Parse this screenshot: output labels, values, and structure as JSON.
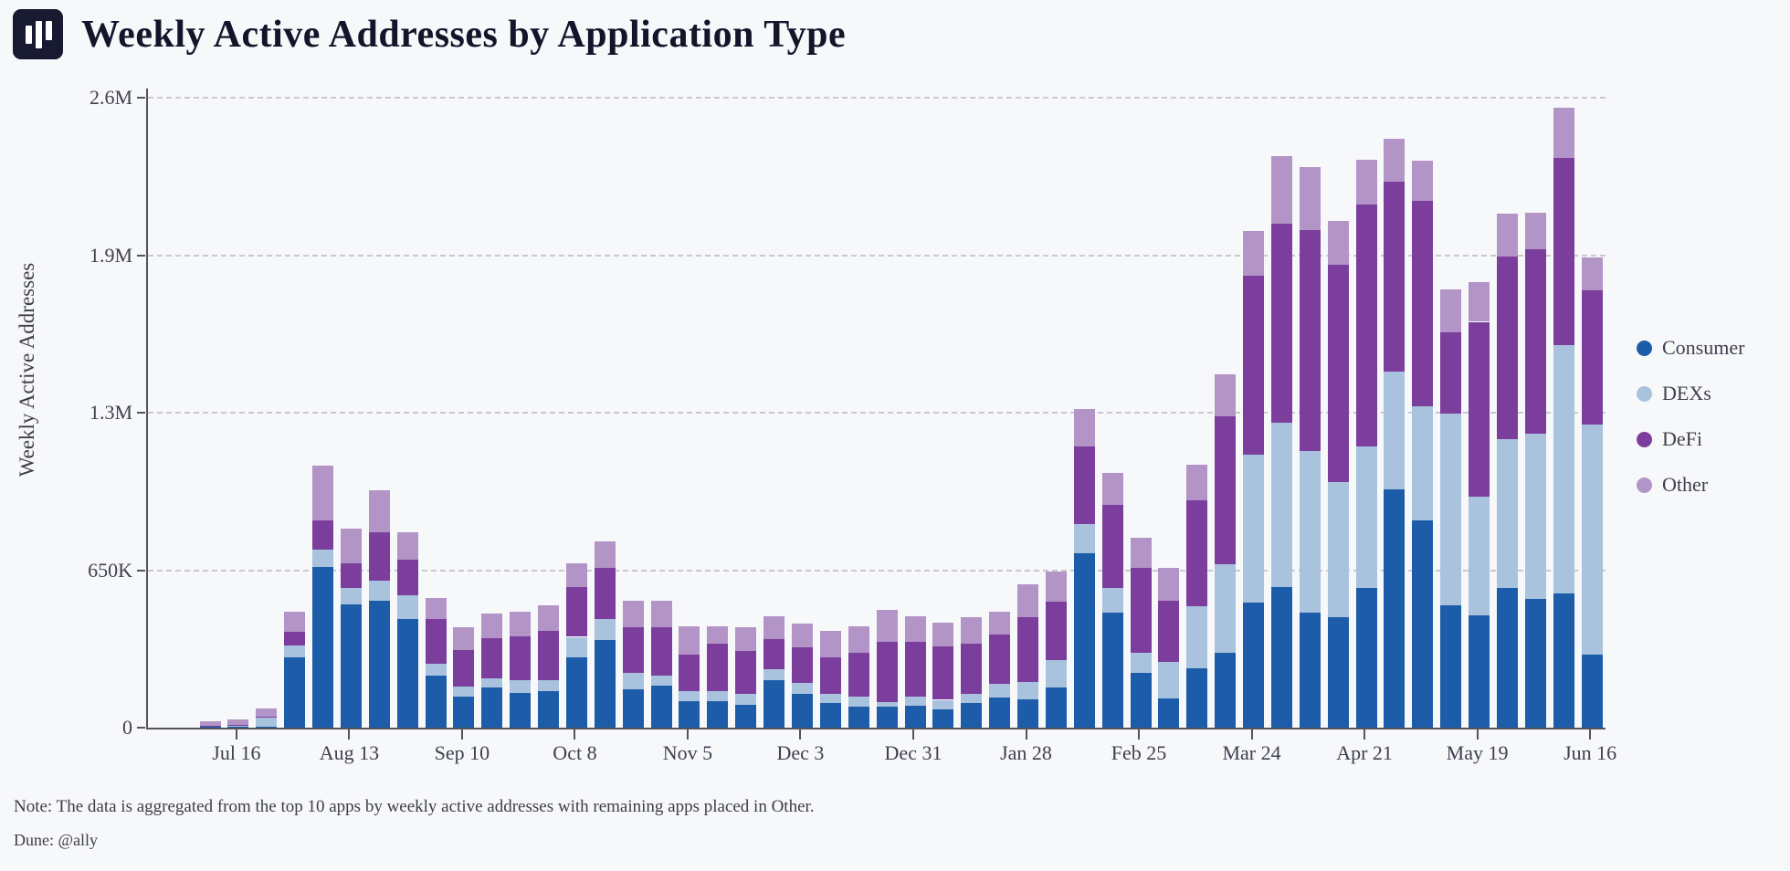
{
  "header": {},
  "chart_data": {
    "type": "bar",
    "stacked": true,
    "title": "Weekly Active Addresses by Application Type",
    "xlabel": "",
    "ylabel": "Weekly Active Addresses",
    "ylim": [
      0,
      2600000
    ],
    "grid": "horizontal-dashed",
    "legend_position": "right",
    "yticks": [
      {
        "value": 0,
        "label": "0"
      },
      {
        "value": 650000,
        "label": "650K"
      },
      {
        "value": 1300000,
        "label": "1.3M"
      },
      {
        "value": 1950000,
        "label": "1.9M"
      },
      {
        "value": 2600000,
        "label": "2.6M"
      }
    ],
    "categories": [
      "Jul 9",
      "Jul 16",
      "Jul 23",
      "Jul 30",
      "Aug 6",
      "Aug 13",
      "Aug 20",
      "Aug 27",
      "Sep 3",
      "Sep 10",
      "Sep 17",
      "Sep 24",
      "Oct 1",
      "Oct 8",
      "Oct 15",
      "Oct 22",
      "Oct 29",
      "Nov 5",
      "Nov 12",
      "Nov 19",
      "Nov 26",
      "Dec 3",
      "Dec 10",
      "Dec 17",
      "Dec 24",
      "Dec 31",
      "Jan 7",
      "Jan 14",
      "Jan 21",
      "Jan 28",
      "Feb 4",
      "Feb 11",
      "Feb 18",
      "Feb 25",
      "Mar 3",
      "Mar 10",
      "Mar 17",
      "Mar 24",
      "Mar 31",
      "Apr 7",
      "Apr 14",
      "Apr 21",
      "Apr 28",
      "May 5",
      "May 12",
      "May 19",
      "May 26",
      "Jun 2",
      "Jun 9",
      "Jun 16"
    ],
    "x_tick_indices": [
      1,
      5,
      9,
      13,
      17,
      21,
      25,
      29,
      33,
      37,
      41,
      45,
      49
    ],
    "x_tick_labels": [
      "Jul 16",
      "Aug 13",
      "Sep 10",
      "Oct 8",
      "Nov 5",
      "Dec 3",
      "Dec 31",
      "Jan 28",
      "Feb 25",
      "Mar 24",
      "Apr 21",
      "May 19",
      "Jun 16"
    ],
    "series": [
      {
        "name": "Consumer",
        "color": "#1d5ca8",
        "values": [
          3000,
          3000,
          5000,
          290000,
          665000,
          510000,
          525000,
          450000,
          215000,
          130000,
          165000,
          145000,
          150000,
          290000,
          360000,
          160000,
          175000,
          110000,
          110000,
          95000,
          195000,
          140000,
          100000,
          85000,
          85000,
          90000,
          75000,
          100000,
          125000,
          115000,
          165000,
          720000,
          475000,
          225000,
          120000,
          245000,
          310000,
          515000,
          580000,
          475000,
          455000,
          575000,
          985000,
          855000,
          505000,
          465000,
          575000,
          530000,
          555000,
          300000
        ]
      },
      {
        "name": "DEXs",
        "color": "#a9c3de",
        "values": [
          3000,
          4000,
          38000,
          50000,
          70000,
          65000,
          80000,
          95000,
          50000,
          40000,
          40000,
          50000,
          45000,
          85000,
          90000,
          65000,
          40000,
          40000,
          40000,
          45000,
          45000,
          45000,
          40000,
          45000,
          20000,
          40000,
          40000,
          40000,
          55000,
          75000,
          115000,
          120000,
          100000,
          85000,
          150000,
          255000,
          365000,
          610000,
          680000,
          665000,
          560000,
          585000,
          485000,
          470000,
          790000,
          490000,
          615000,
          685000,
          1025000,
          950000
        ]
      },
      {
        "name": "DeFi",
        "color": "#7c3e9d",
        "values": [
          2000,
          3000,
          2000,
          55000,
          120000,
          105000,
          200000,
          150000,
          185000,
          150000,
          165000,
          180000,
          205000,
          205000,
          210000,
          190000,
          200000,
          150000,
          195000,
          175000,
          125000,
          145000,
          150000,
          180000,
          250000,
          225000,
          220000,
          205000,
          205000,
          265000,
          240000,
          320000,
          345000,
          350000,
          255000,
          440000,
          610000,
          740000,
          820000,
          915000,
          895000,
          1000000,
          785000,
          850000,
          335000,
          720000,
          755000,
          760000,
          770000,
          555000
        ]
      },
      {
        "name": "Other",
        "color": "#b394c6",
        "values": [
          20000,
          25000,
          35000,
          85000,
          225000,
          140000,
          175000,
          110000,
          85000,
          95000,
          100000,
          105000,
          105000,
          100000,
          110000,
          110000,
          110000,
          120000,
          75000,
          100000,
          95000,
          100000,
          110000,
          110000,
          130000,
          105000,
          100000,
          110000,
          95000,
          135000,
          125000,
          155000,
          130000,
          125000,
          135000,
          145000,
          175000,
          185000,
          280000,
          260000,
          180000,
          185000,
          175000,
          165000,
          180000,
          165000,
          175000,
          150000,
          210000,
          135000
        ]
      }
    ]
  },
  "footer": {
    "note": "Note: The data is aggregated from the top 10 apps by weekly active addresses with remaining apps placed in Other.",
    "credit": "Dune: @ally"
  }
}
